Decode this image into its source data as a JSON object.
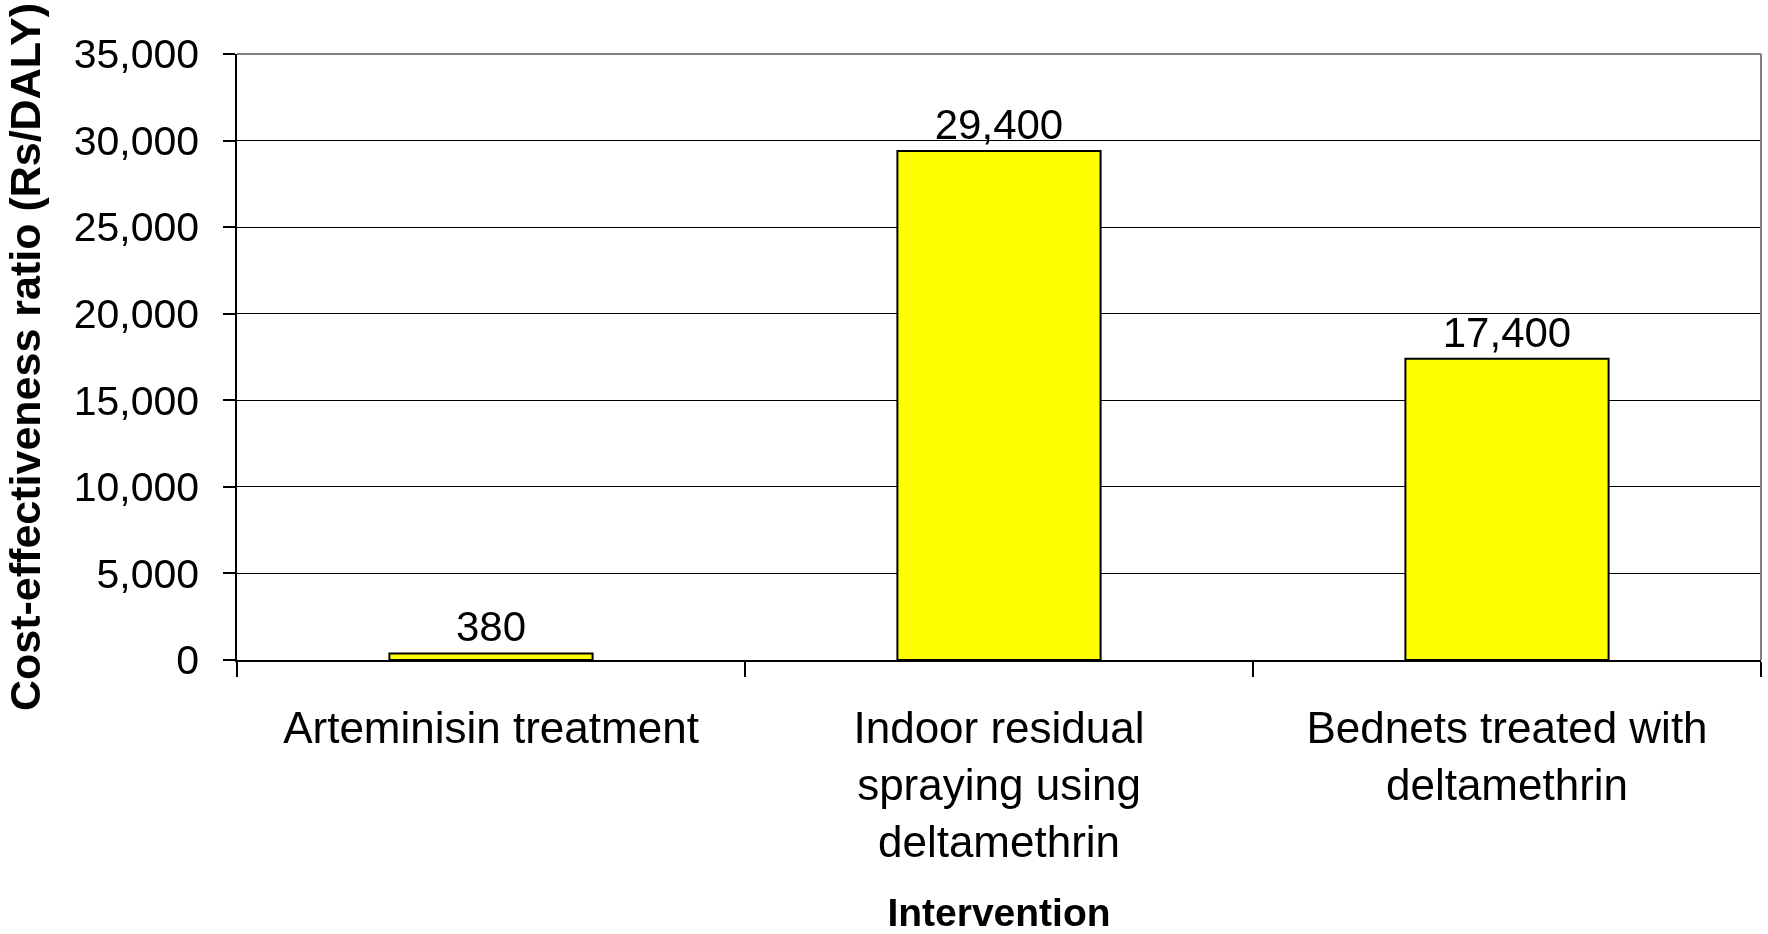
{
  "chart_data": {
    "type": "bar",
    "xlabel": "Intervention",
    "ylabel": "Cost-effectiveness ratio (Rs/DALY)",
    "categories": [
      "Arteminisin treatment",
      "Indoor residual spraying using deltamethrin",
      "Bednets treated with deltamethrin"
    ],
    "values": [
      380,
      29400,
      17400
    ],
    "value_labels": [
      "380",
      "29,400",
      "17,400"
    ],
    "color": "#ffff00",
    "ylim": [
      0,
      35000
    ],
    "yticks": [
      0,
      {
        "value": 5000,
        "label": "5,000"
      },
      {
        "value": 10000,
        "label": "10,000"
      },
      {
        "value": 15000,
        "label": "15,000"
      },
      {
        "value": 20000,
        "label": "20,000"
      },
      {
        "value": 25000,
        "label": "25,000"
      },
      {
        "value": 30000,
        "label": "30,000"
      },
      {
        "value": 35000,
        "label": "35,000"
      }
    ],
    "grid": "y"
  }
}
